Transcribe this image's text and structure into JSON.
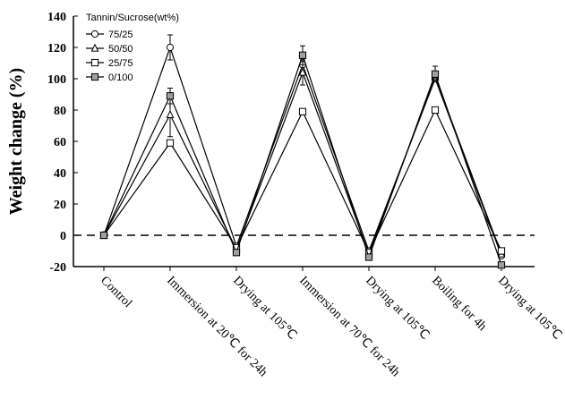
{
  "chart_data": {
    "type": "line",
    "title": "",
    "xlabel": "",
    "ylabel": "Weight change (%)",
    "ylim": [
      -20,
      140
    ],
    "yticks": [
      -20,
      0,
      20,
      40,
      60,
      80,
      100,
      120,
      140
    ],
    "grid": false,
    "legend_title": "Tannin/Sucrose(wt%)",
    "legend_position": "top-left",
    "reference_line": {
      "y": 0,
      "style": "dashed"
    },
    "categories": [
      "Control",
      "Immersion at 20℃ for 24h",
      "Drying at 105℃",
      "Immersion at 70℃ for 24h",
      "Drying at 105℃",
      "Boiling for 4h",
      "Drying at 105℃"
    ],
    "series": [
      {
        "name": "75/25",
        "marker": "circle",
        "fill": "#ffffff",
        "values": [
          0,
          120,
          -7,
          109,
          -10,
          100,
          -13
        ],
        "error": [
          0,
          8,
          0,
          0,
          0,
          0,
          0
        ]
      },
      {
        "name": "50/50",
        "marker": "triangle",
        "fill": "#ffffff",
        "values": [
          0,
          77,
          -9,
          104,
          -12,
          101,
          -12
        ],
        "error": [
          0,
          14,
          0,
          8,
          0,
          0,
          0
        ]
      },
      {
        "name": "25/75",
        "marker": "square",
        "fill": "#ffffff",
        "values": [
          0,
          59,
          -8,
          79,
          -11,
          80,
          -10
        ],
        "error": [
          0,
          0,
          0,
          0,
          0,
          0,
          0
        ]
      },
      {
        "name": "0/100",
        "marker": "square",
        "fill": "#a0a0a0",
        "values": [
          0,
          89,
          -11,
          115,
          -14,
          103,
          -19
        ],
        "error": [
          0,
          5,
          0,
          6,
          0,
          5,
          0
        ]
      }
    ]
  }
}
